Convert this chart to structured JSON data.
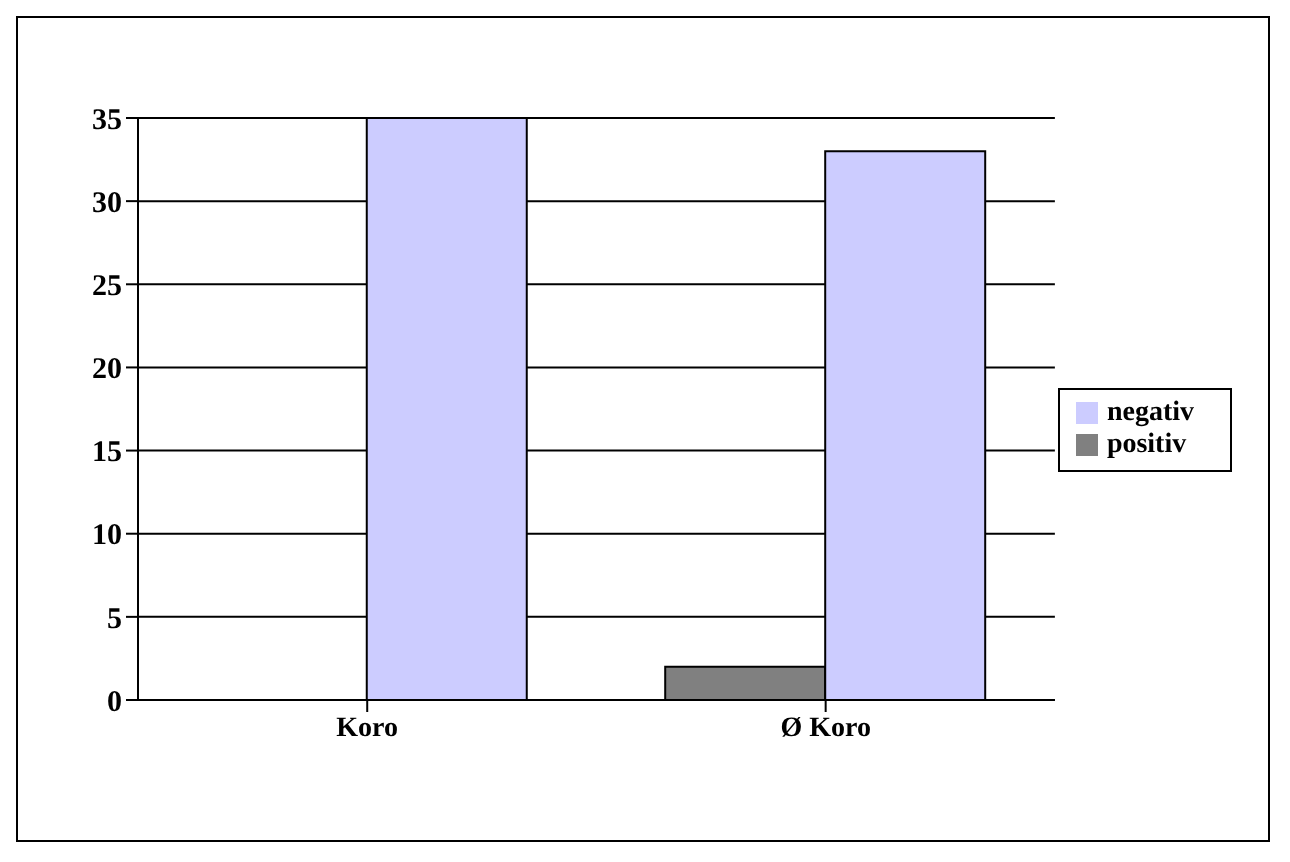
{
  "chart_data": {
    "type": "bar",
    "categories": [
      "Koro",
      "Ø Koro"
    ],
    "series": [
      {
        "name": "positiv",
        "color": "#808080",
        "values": [
          0,
          2
        ]
      },
      {
        "name": "negativ",
        "color": "#ccccff",
        "values": [
          35,
          33
        ]
      }
    ],
    "ylim": [
      0,
      35
    ],
    "yticks": [
      0,
      5,
      10,
      15,
      20,
      25,
      30,
      35
    ],
    "grid": "y",
    "legend": "right"
  }
}
